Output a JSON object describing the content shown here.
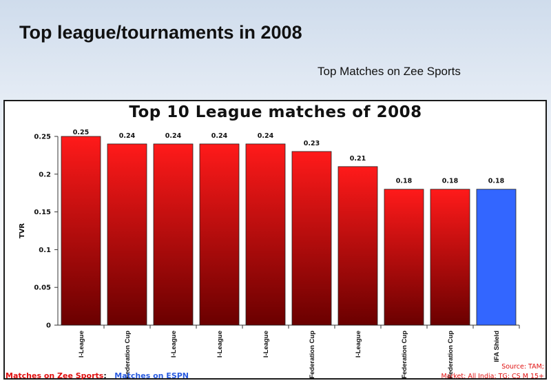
{
  "slide": {
    "title": "Top league/tournaments in 2008",
    "subtitle": "Top Matches on Zee Sports"
  },
  "legend": {
    "zee": "Matches on Zee Sports",
    "separator": ";",
    "espn": "Matches on ESPN"
  },
  "source": {
    "line1": "Source: TAM;",
    "line2": "Market: All India; TG: CS M 15+"
  },
  "colors": {
    "zee_bar_top": "#ff1a1a",
    "zee_bar_bottom": "#6a0000",
    "espn_bar": "#3366ff"
  },
  "chart_data": {
    "type": "bar",
    "title": "Top 10 League matches of 2008",
    "xlabel": "",
    "ylabel": "TVR",
    "ylim": [
      0,
      0.25
    ],
    "yticks": [
      "0",
      "0.05",
      "0.1",
      "0.15",
      "0.2",
      "0.25"
    ],
    "categories": [
      "I-League",
      "Federation Cup",
      "I-League",
      "I-League",
      "I-League",
      "Federation Cup",
      "I-League",
      "Federation Cup",
      "Federation Cup",
      "IFA Shield"
    ],
    "values": [
      0.25,
      0.24,
      0.24,
      0.24,
      0.24,
      0.23,
      0.21,
      0.18,
      0.18,
      0.18
    ],
    "value_labels": [
      "0.25",
      "0.24",
      "0.24",
      "0.24",
      "0.24",
      "0.23",
      "0.21",
      "0.18",
      "0.18",
      "0.18"
    ],
    "channels": [
      "zee",
      "zee",
      "zee",
      "zee",
      "zee",
      "zee",
      "zee",
      "zee",
      "zee",
      "espn"
    ],
    "grid": false,
    "legend": "bottom-left"
  }
}
